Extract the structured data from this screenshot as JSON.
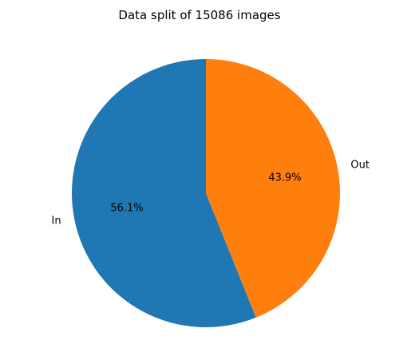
{
  "chart_data": {
    "type": "pie",
    "title": "Data split of 15086 images",
    "categories": [
      "In",
      "Out"
    ],
    "values": [
      56.1,
      43.9
    ],
    "autopct_labels": [
      "56.1%",
      "43.9%"
    ],
    "colors": [
      "#1f77b4",
      "#ff7f0e"
    ],
    "start_angle_deg": 90,
    "direction": "counterclockwise",
    "legend": "none",
    "grid": false
  }
}
